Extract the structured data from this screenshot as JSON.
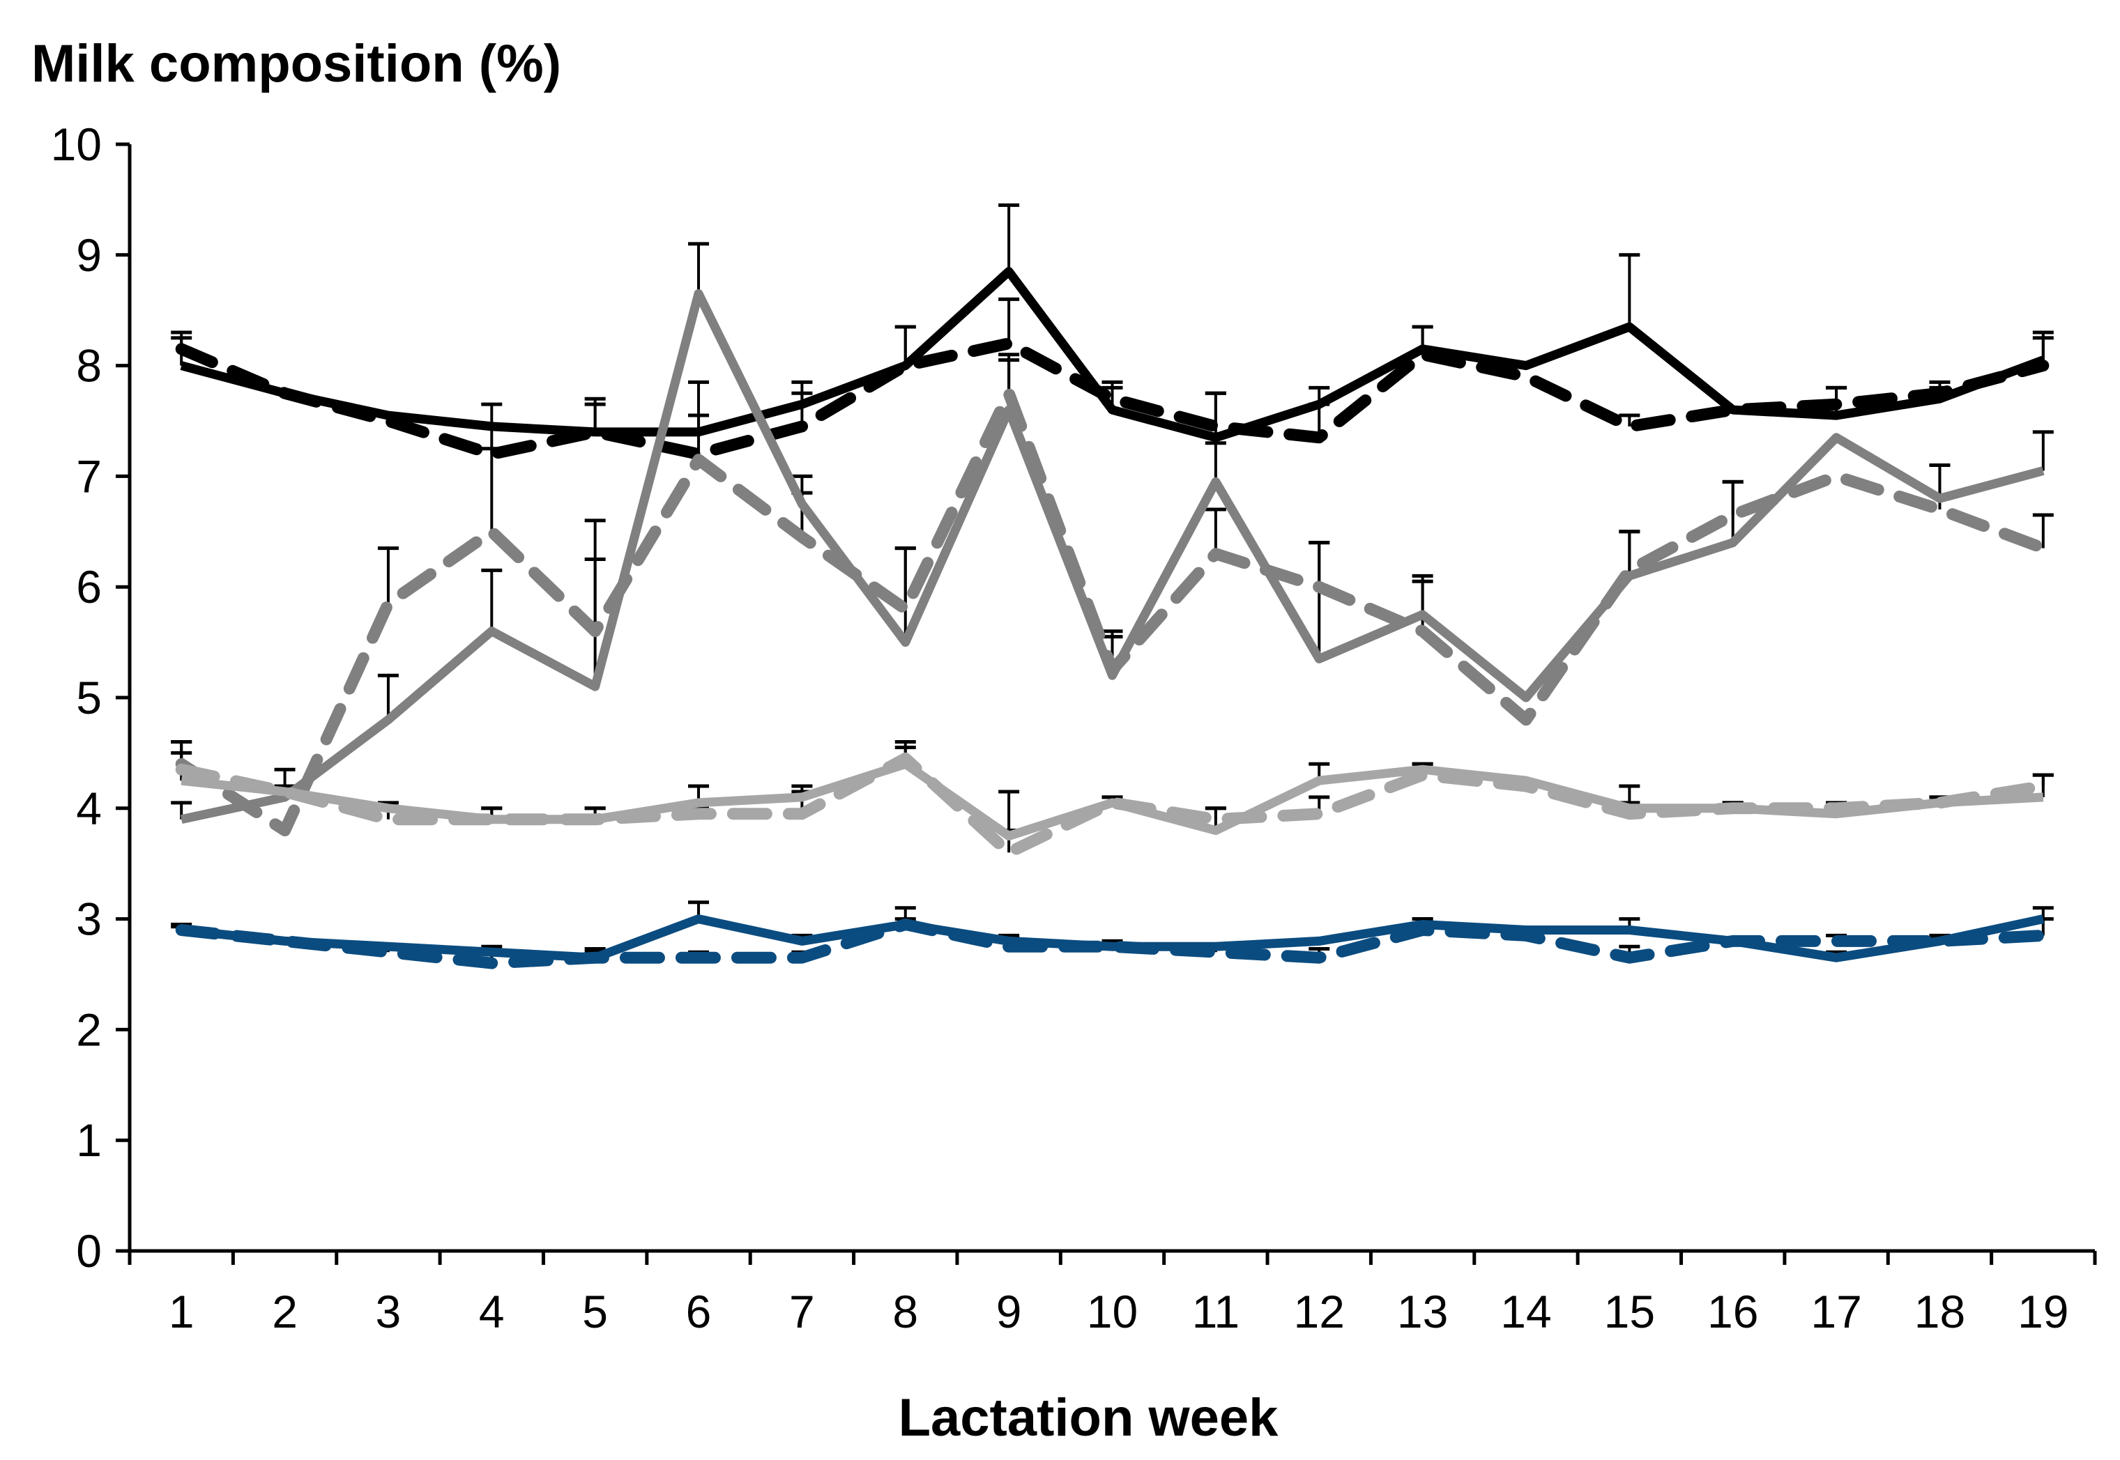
{
  "chart_data": {
    "type": "line",
    "ylabel": "Milk composition (%)",
    "xlabel": "Lactation week",
    "ylim": [
      0,
      10
    ],
    "yticks": [
      "0",
      "1",
      "2",
      "3",
      "4",
      "5",
      "6",
      "7",
      "8",
      "9",
      "10"
    ],
    "categories": [
      "1",
      "2",
      "3",
      "4",
      "5",
      "6",
      "7",
      "8",
      "9",
      "10",
      "11",
      "12",
      "13",
      "14",
      "15",
      "16",
      "17",
      "18",
      "19"
    ],
    "grid": false,
    "legend": "none",
    "series": [
      {
        "name": "black-solid",
        "color": "#000000",
        "dashed": false,
        "values": [
          8.0,
          7.75,
          7.55,
          7.45,
          7.4,
          7.4,
          7.65,
          8.0,
          8.85,
          7.6,
          7.35,
          7.65,
          8.15,
          8.0,
          8.35,
          7.6,
          7.55,
          7.7,
          8.05
        ],
        "errors": [
          0.25,
          0,
          0,
          0.2,
          0.25,
          0.15,
          0.2,
          0.35,
          0.6,
          0.2,
          0.4,
          0.15,
          0.2,
          0,
          0.65,
          0,
          0.25,
          0.1,
          0.2
        ]
      },
      {
        "name": "black-dashed",
        "color": "#000000",
        "dashed": true,
        "values": [
          8.15,
          7.75,
          7.5,
          7.2,
          7.4,
          7.2,
          7.45,
          8.0,
          8.2,
          7.7,
          7.45,
          7.35,
          8.1,
          7.9,
          7.45,
          7.6,
          7.65,
          7.75,
          8.0
        ],
        "errors": [
          0.15,
          0,
          0,
          0.25,
          0.3,
          0.35,
          0.3,
          0.35,
          0.4,
          0.15,
          0.3,
          0.3,
          0.25,
          0,
          0.1,
          0,
          0.15,
          0.1,
          0.3
        ]
      },
      {
        "name": "gray-solid",
        "color": "#808080",
        "dashed": false,
        "values": [
          3.9,
          4.1,
          4.8,
          5.6,
          5.1,
          8.65,
          6.75,
          5.5,
          7.6,
          5.2,
          6.95,
          5.35,
          5.75,
          5.0,
          6.1,
          6.4,
          7.35,
          6.8,
          7.05
        ],
        "errors": [
          0.15,
          0,
          0.4,
          0.55,
          1.15,
          0.45,
          0.1,
          0.85,
          0.5,
          0.35,
          0.35,
          1.05,
          0.35,
          0,
          0.4,
          0.55,
          0,
          0.3,
          0.35
        ]
      },
      {
        "name": "gray-dashed",
        "color": "#808080",
        "dashed": true,
        "values": [
          4.4,
          3.8,
          5.85,
          6.5,
          5.6,
          7.15,
          6.45,
          5.8,
          7.75,
          5.25,
          6.3,
          6.0,
          5.6,
          4.8,
          6.15,
          6.65,
          7.0,
          6.7,
          6.35
        ],
        "errors": [
          0.2,
          0,
          0.5,
          0.75,
          1.0,
          0.7,
          0.55,
          0.55,
          0.3,
          0.35,
          0.4,
          0.4,
          0.45,
          0,
          0.35,
          0.3,
          0,
          0.4,
          0.3
        ]
      },
      {
        "name": "light-gray-solid",
        "color": "#a6a6a6",
        "dashed": false,
        "values": [
          4.25,
          4.15,
          4.0,
          3.9,
          3.9,
          4.05,
          4.1,
          4.4,
          3.75,
          4.05,
          3.8,
          4.25,
          4.35,
          4.25,
          4.0,
          4.0,
          3.95,
          4.05,
          4.1
        ],
        "errors": [
          0.35,
          0.2,
          0.05,
          0.1,
          0.1,
          0.15,
          0.1,
          0.2,
          0.4,
          0.05,
          0.2,
          0.15,
          0.05,
          0,
          0.2,
          0.05,
          0.05,
          0.05,
          0.2
        ]
      },
      {
        "name": "light-gray-dashed",
        "color": "#a6a6a6",
        "dashed": true,
        "values": [
          4.35,
          4.15,
          3.9,
          3.9,
          3.9,
          3.95,
          3.95,
          4.45,
          3.6,
          4.05,
          3.9,
          3.95,
          4.3,
          4.2,
          3.95,
          4.0,
          4.0,
          4.05,
          4.2
        ],
        "errors": [
          0.15,
          0.05,
          0.1,
          0.1,
          0.1,
          0.05,
          0.2,
          0.1,
          0.2,
          0.05,
          0.1,
          0.15,
          0.1,
          0,
          0.1,
          0.05,
          0.05,
          0.05,
          0.1
        ]
      },
      {
        "name": "blue-solid",
        "color": "#0b4c80",
        "dashed": false,
        "values": [
          2.9,
          2.8,
          2.75,
          2.7,
          2.65,
          3.0,
          2.8,
          2.95,
          2.8,
          2.75,
          2.75,
          2.8,
          2.95,
          2.9,
          2.9,
          2.8,
          2.65,
          2.8,
          3.0
        ],
        "errors": [
          0.05,
          0,
          0.02,
          0.05,
          0.05,
          0.15,
          0.05,
          0.15,
          0.05,
          0.05,
          0.02,
          0.02,
          0.05,
          0,
          0.1,
          0.02,
          0.05,
          0.02,
          0.1
        ]
      },
      {
        "name": "blue-dashed",
        "color": "#0b4c80",
        "dashed": true,
        "values": [
          2.9,
          2.8,
          2.7,
          2.6,
          2.65,
          2.65,
          2.65,
          2.95,
          2.75,
          2.75,
          2.7,
          2.65,
          2.9,
          2.85,
          2.65,
          2.8,
          2.8,
          2.8,
          2.85
        ],
        "errors": [
          0.03,
          0,
          0.03,
          0.08,
          0.08,
          0.05,
          0.05,
          0.05,
          0.08,
          0.05,
          0.05,
          0.08,
          0.1,
          0,
          0.1,
          0.03,
          0.05,
          0.05,
          0.15
        ]
      }
    ]
  }
}
